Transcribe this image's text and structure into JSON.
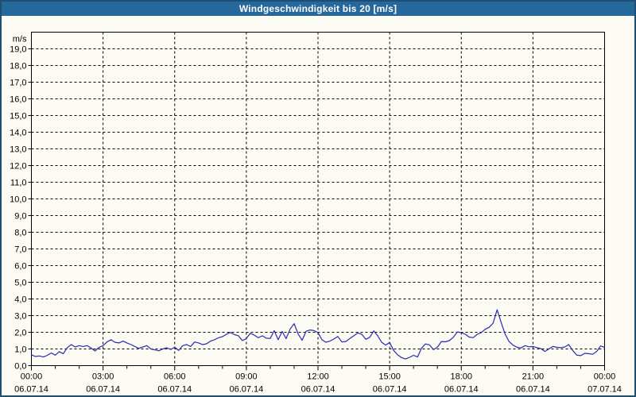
{
  "title": "Windgeschwindigkeit bis 20 [m/s]",
  "colors": {
    "titlebar_bg": "#26689B",
    "titlebar_text": "#FFFFFF",
    "frame_border": "#1C4F73",
    "page_bg": "#FCFCF4",
    "axis": "#000000",
    "grid": "#000000",
    "line": "#2929B3"
  },
  "y_axis": {
    "unit": "m/s",
    "min": 0,
    "max": 20,
    "tick_step": 1,
    "tick_labels": [
      "0,0",
      "1,0",
      "2,0",
      "3,0",
      "4,0",
      "5,0",
      "6,0",
      "7,0",
      "8,0",
      "9,0",
      "10,0",
      "11,0",
      "12,0",
      "13,0",
      "14,0",
      "15,0",
      "16,0",
      "17,0",
      "18,0",
      "19,0"
    ]
  },
  "x_axis": {
    "hours_span": 24,
    "minor_tick_every_hours": 1,
    "major_tick_every_hours": 3,
    "major_ticks": [
      {
        "time": "00:00",
        "date": "06.07.14"
      },
      {
        "time": "03:00",
        "date": "06.07.14"
      },
      {
        "time": "06:00",
        "date": "06.07.14"
      },
      {
        "time": "09:00",
        "date": "06.07.14"
      },
      {
        "time": "12:00",
        "date": "06.07.14"
      },
      {
        "time": "15:00",
        "date": "06.07.14"
      },
      {
        "time": "18:00",
        "date": "06.07.14"
      },
      {
        "time": "21:00",
        "date": "06.07.14"
      },
      {
        "time": "00:00",
        "date": "07.07.14"
      }
    ]
  },
  "chart_data": {
    "type": "line",
    "title": "Windgeschwindigkeit bis 20 [m/s]",
    "series_name": "Windgeschwindigkeit",
    "unit": "m/s",
    "xlabel": "",
    "ylabel": "m/s",
    "ylim": [
      0,
      20
    ],
    "x_start": "06.07.14 00:00",
    "x_end": "07.07.14 00:00",
    "sample_interval_minutes": 10,
    "grid": true,
    "legend": false,
    "values": [
      0.65,
      0.55,
      0.58,
      0.52,
      0.62,
      0.76,
      0.63,
      0.84,
      0.72,
      1.08,
      1.26,
      1.12,
      1.2,
      1.15,
      1.2,
      1.05,
      0.88,
      1.1,
      1.2,
      1.42,
      1.55,
      1.4,
      1.36,
      1.47,
      1.36,
      1.26,
      1.15,
      1.04,
      1.12,
      1.2,
      1.0,
      0.95,
      0.89,
      1.0,
      1.07,
      0.97,
      1.1,
      0.91,
      1.2,
      1.26,
      1.15,
      1.42,
      1.36,
      1.26,
      1.31,
      1.47,
      1.55,
      1.67,
      1.74,
      1.88,
      1.99,
      1.86,
      1.79,
      1.5,
      1.63,
      1.94,
      1.83,
      1.67,
      1.79,
      1.65,
      1.63,
      2.1,
      1.55,
      2.05,
      1.62,
      2.2,
      2.52,
      1.9,
      1.52,
      2.06,
      2.14,
      2.1,
      1.98,
      1.55,
      1.4,
      1.47,
      1.6,
      1.75,
      1.42,
      1.45,
      1.63,
      1.79,
      1.96,
      1.88,
      1.58,
      1.7,
      2.08,
      1.79,
      1.4,
      1.23,
      1.39,
      0.92,
      0.65,
      0.48,
      0.4,
      0.5,
      0.62,
      0.52,
      1.05,
      1.3,
      1.25,
      0.96,
      1.1,
      1.45,
      1.43,
      1.5,
      1.7,
      2.02,
      1.98,
      1.88,
      1.71,
      1.68,
      1.88,
      1.98,
      2.18,
      2.3,
      2.55,
      3.35,
      2.6,
      1.9,
      1.45,
      1.23,
      1.1,
      1.06,
      1.2,
      1.13,
      1.15,
      1.08,
      1.02,
      0.85,
      1.0,
      1.15,
      1.1,
      1.08,
      1.12,
      1.26,
      0.91,
      0.63,
      0.6,
      0.74,
      0.72,
      0.68,
      0.85,
      1.18,
      1.1
    ]
  }
}
